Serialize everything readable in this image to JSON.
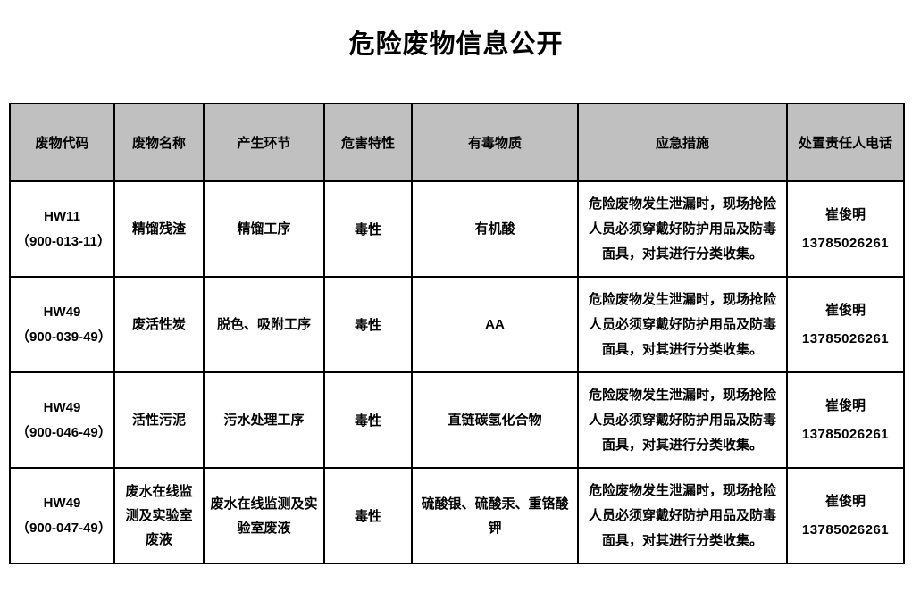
{
  "title": "危险废物信息公开",
  "colors": {
    "header_bg": "#c0c0c0",
    "border": "#000000",
    "text": "#000000",
    "page_bg": "#ffffff"
  },
  "table": {
    "headers": {
      "code": "废物代码",
      "name": "废物名称",
      "process": "产生环节",
      "hazard": "危害特性",
      "toxic": "有毒物质",
      "emergency": "应急措施",
      "contact": "处置责任人电话"
    },
    "rows": [
      {
        "code": "HW11",
        "code_detail": "（900-013-11）",
        "name": "精馏残渣",
        "process": "精馏工序",
        "hazard": "毒性",
        "toxic": "有机酸",
        "emergency": "危险废物发生泄漏时，现场抢险人员必须穿戴好防护用品及防毒面具，对其进行分类收集。",
        "contact_name": "崔俊明",
        "contact_phone": "13785026261"
      },
      {
        "code": "HW49",
        "code_detail": "（900-039-49）",
        "name": "废活性炭",
        "process": "脱色、吸附工序",
        "hazard": "毒性",
        "toxic": "AA",
        "emergency": "危险废物发生泄漏时，现场抢险人员必须穿戴好防护用品及防毒面具，对其进行分类收集。",
        "contact_name": "崔俊明",
        "contact_phone": "13785026261"
      },
      {
        "code": "HW49",
        "code_detail": "（900-046-49）",
        "name": "活性污泥",
        "process": "污水处理工序",
        "hazard": "毒性",
        "toxic": "直链碳氢化合物",
        "emergency": "危险废物发生泄漏时，现场抢险人员必须穿戴好防护用品及防毒面具，对其进行分类收集。",
        "contact_name": "崔俊明",
        "contact_phone": "13785026261"
      },
      {
        "code": "HW49",
        "code_detail": "（900-047-49）",
        "name": "废水在线监测及实验室废液",
        "process": "废水在线监测及实验室废液",
        "hazard": "毒性",
        "toxic": "硫酸银、硫酸汞、重铬酸钾",
        "emergency": "危险废物发生泄漏时，现场抢险人员必须穿戴好防护用品及防毒面具，对其进行分类收集。",
        "contact_name": "崔俊明",
        "contact_phone": "13785026261"
      }
    ]
  }
}
